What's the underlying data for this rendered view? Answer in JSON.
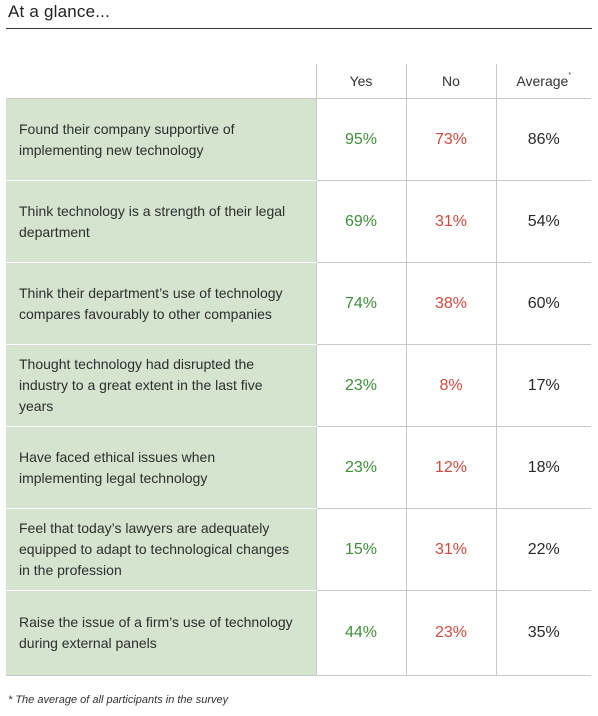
{
  "title": "At a glance...",
  "table": {
    "headers": {
      "yes": "Yes",
      "no": "No",
      "average": "Average",
      "average_marker": "*"
    },
    "rows": [
      {
        "label": "Found their company supportive of implementing new technology",
        "yes": "95%",
        "no": "73%",
        "average": "86%"
      },
      {
        "label": "Think technology is a strength of their legal department",
        "yes": "69%",
        "no": "31%",
        "average": "54%"
      },
      {
        "label": "Think their department’s use of technology compares favourably to other companies",
        "yes": "74%",
        "no": "38%",
        "average": "60%"
      },
      {
        "label": "Thought technology had disrupted the industry to a great extent in the last five years",
        "yes": "23%",
        "no": "8%",
        "average": "17%"
      },
      {
        "label": "Have faced ethical issues when implementing legal technology",
        "yes": "23%",
        "no": "12%",
        "average": "18%"
      },
      {
        "label": "Feel that today’s lawyers are adequately equipped to adapt to technological changes in the profession",
        "yes": "15%",
        "no": "31%",
        "average": "22%"
      },
      {
        "label": "Raise the issue of a firm’s use of technology during external panels",
        "yes": "44%",
        "no": "23%",
        "average": "35%"
      }
    ]
  },
  "footnote": "* The average of all participants in the survey",
  "colors": {
    "label_bg": "#d4e4cf",
    "yes": "#3f8f3a",
    "no": "#d04a3e"
  }
}
